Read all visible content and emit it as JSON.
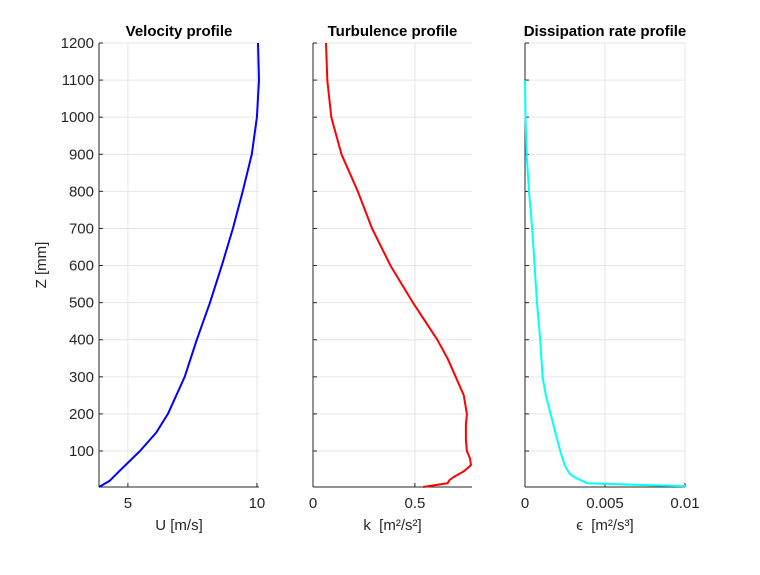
{
  "chart_data": [
    {
      "type": "line",
      "title": "Velocity profile",
      "xlabel": "U [m/s]",
      "ylabel": "Z [mm]",
      "xlim": [
        3.88,
        10.08
      ],
      "ylim": [
        3,
        1200
      ],
      "xticks": [
        5,
        10
      ],
      "xtick_labels": [
        "5",
        "10"
      ],
      "yticks": [
        100,
        200,
        300,
        400,
        500,
        600,
        700,
        800,
        900,
        1000,
        1100,
        1200
      ],
      "ytick_labels": [
        "100",
        "200",
        "300",
        "400",
        "500",
        "600",
        "700",
        "800",
        "900",
        "1000",
        "1100",
        "1200"
      ],
      "grid": true,
      "color": "#0000ff",
      "series": [
        {
          "x": [
            3.88,
            4.3,
            4.73,
            5.47,
            6.1,
            6.55,
            7.2,
            7.67,
            8.18,
            8.64,
            9.07,
            9.45,
            9.8,
            10.0,
            10.08,
            10.04
          ],
          "y": [
            3,
            20,
            50,
            100,
            150,
            200,
            300,
            400,
            500,
            600,
            700,
            800,
            900,
            1000,
            1100,
            1200
          ]
        }
      ]
    },
    {
      "type": "line",
      "title": "Turbulence profile",
      "xlabel": "k  [m²/s²]",
      "xlim": [
        0,
        0.78
      ],
      "ylim": [
        3,
        1200
      ],
      "xticks": [
        0,
        0.5
      ],
      "xtick_labels": [
        "0",
        "0.5"
      ],
      "yticks": [
        100,
        200,
        300,
        400,
        500,
        600,
        700,
        800,
        900,
        1000,
        1100,
        1200
      ],
      "grid": true,
      "color": "#ff0000",
      "series": [
        {
          "x": [
            0.54,
            0.66,
            0.67,
            0.69,
            0.74,
            0.775,
            0.77,
            0.755,
            0.75,
            0.75,
            0.755,
            0.74,
            0.7,
            0.66,
            0.61,
            0.49,
            0.38,
            0.29,
            0.22,
            0.14,
            0.09,
            0.07,
            0.064
          ],
          "y": [
            3,
            13,
            22,
            30,
            45,
            62,
            80,
            100,
            130,
            170,
            200,
            250,
            300,
            350,
            400,
            500,
            600,
            700,
            800,
            900,
            1000,
            1100,
            1200
          ]
        }
      ]
    },
    {
      "type": "line",
      "title": "Dissipation rate profile",
      "xlabel": "ϵ  [m²/s³]",
      "xlim": [
        0,
        0.01
      ],
      "ylim": [
        3,
        1200
      ],
      "xticks": [
        0,
        0.005,
        0.01
      ],
      "xtick_labels": [
        "0",
        "0.005",
        "0.01"
      ],
      "yticks": [
        100,
        200,
        300,
        400,
        500,
        600,
        700,
        800,
        900,
        1000,
        1100,
        1200
      ],
      "grid": true,
      "color": "#00ffff",
      "series": [
        {
          "x": [
            0.01,
            0.0039,
            0.0032,
            0.0028,
            0.0025,
            0.0022,
            0.0019,
            0.0016,
            0.0013,
            0.0011,
            0.00095,
            0.00075,
            0.0006,
            0.00045,
            0.00025,
            0.0001,
            3e-05,
            0.0
          ],
          "y": [
            5,
            13,
            27,
            38,
            60,
            100,
            150,
            200,
            250,
            300,
            400,
            500,
            600,
            700,
            800,
            900,
            1000,
            1100
          ]
        }
      ]
    }
  ]
}
